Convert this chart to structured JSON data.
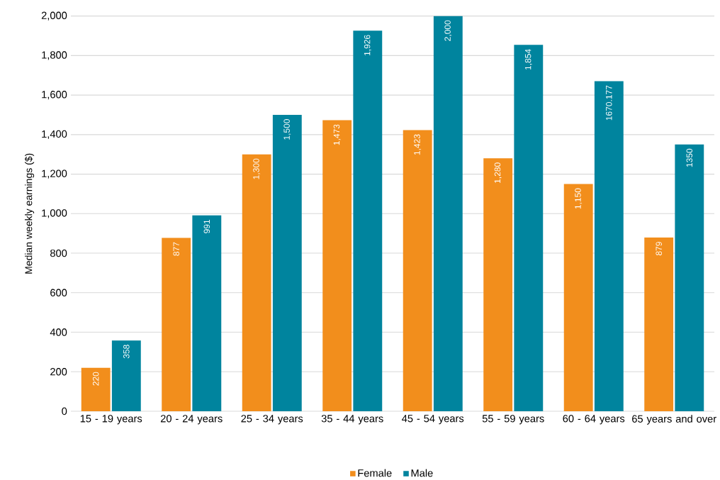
{
  "chart_data": {
    "type": "bar",
    "categories": [
      "15 - 19 years",
      "20 - 24 years",
      "25 - 34 years",
      "35 - 44 years",
      "45 - 54 years",
      "55 - 59 years",
      "60 - 64 years",
      "65 years and over"
    ],
    "series": [
      {
        "name": "Female",
        "color": "#f28e1c",
        "values": [
          220,
          877,
          1300,
          1473,
          1423,
          1280,
          1150,
          879
        ],
        "value_labels": [
          "220",
          "877",
          "1,300",
          "1,473",
          "1,423",
          "1,280",
          "1,150",
          "879"
        ]
      },
      {
        "name": "Male",
        "color": "#00849e",
        "values": [
          358,
          991,
          1500,
          1926,
          2000,
          1854,
          1670.177,
          1350
        ],
        "value_labels": [
          "358",
          "991",
          "1,500",
          "1,926",
          "2,000",
          "1,854",
          "1670.177",
          "1350"
        ]
      }
    ],
    "ylabel": "Median weekly earnings ($)",
    "ylim": [
      0,
      2000
    ],
    "yticks": [
      0,
      200,
      400,
      600,
      800,
      {
        "value": 1000,
        "label": "1,000"
      },
      {
        "value": 1200,
        "label": "1,200"
      },
      {
        "value": 1400,
        "label": "1,400"
      },
      {
        "value": 1600,
        "label": "1,600"
      },
      {
        "value": 1800,
        "label": "1,800"
      },
      {
        "value": 2000,
        "label": "2,000"
      }
    ],
    "grid": "y",
    "legend": "bottom"
  }
}
